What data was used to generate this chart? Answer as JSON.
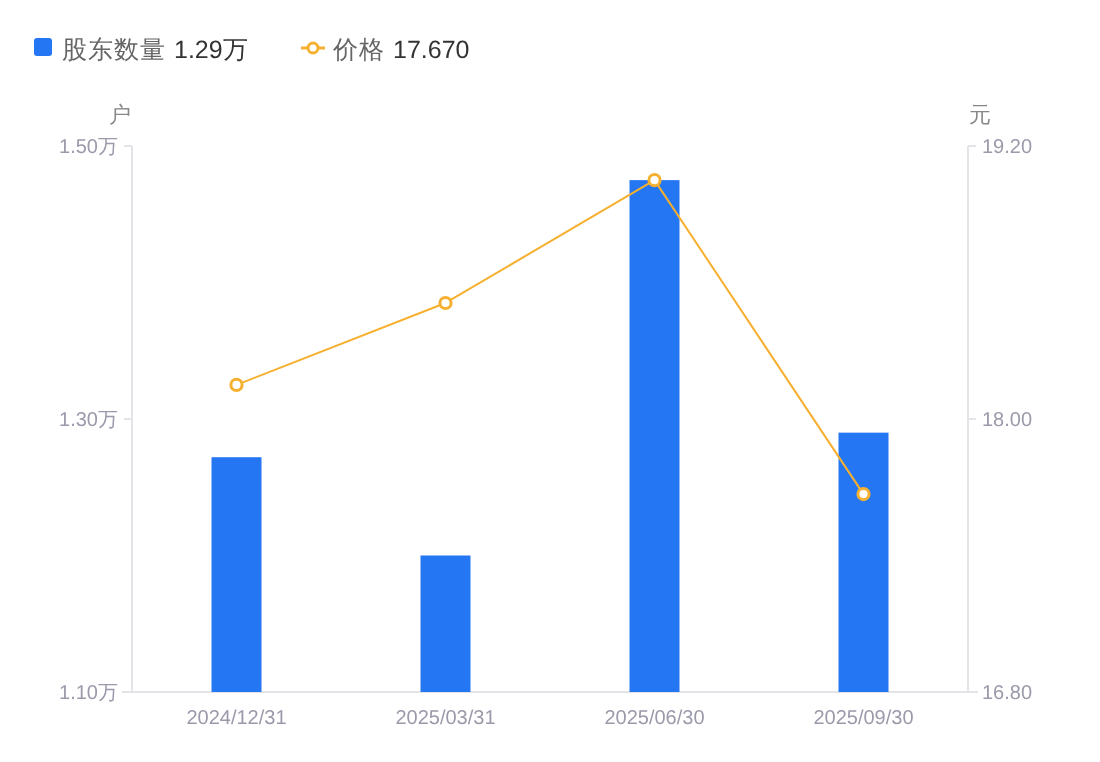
{
  "chart_data": {
    "type": "bar",
    "categories": [
      "2024/12/31",
      "2025/03/31",
      "2025/06/30",
      "2025/09/30"
    ],
    "ylabel": "户",
    "y2label": "元",
    "ylim": [
      1.1,
      1.5
    ],
    "yticks": [
      {
        "value": 1.1,
        "label": "1.10万"
      },
      {
        "value": 1.3,
        "label": "1.30万"
      },
      {
        "value": 1.5,
        "label": "1.50万"
      }
    ],
    "y2lim": [
      16.8,
      19.2
    ],
    "y2ticks": [
      {
        "value": 16.8,
        "label": "16.80"
      },
      {
        "value": 18,
        "label": "18.00"
      },
      {
        "value": 19.2,
        "label": "19.20"
      }
    ],
    "series": [
      {
        "name": "股东数量",
        "color": "#2476f2",
        "values": [
          1.272,
          1.2,
          1.475,
          1.29
        ]
      },
      {
        "name": "价格",
        "type": "line",
        "axis": "y2",
        "color": "#f6b02f",
        "values": [
          18.15,
          18.51,
          19.05,
          17.67
        ]
      }
    ],
    "annotations": [
      "1.29万",
      "17.670"
    ],
    "legend": "top left",
    "grid": false,
    "marker": "circle"
  }
}
